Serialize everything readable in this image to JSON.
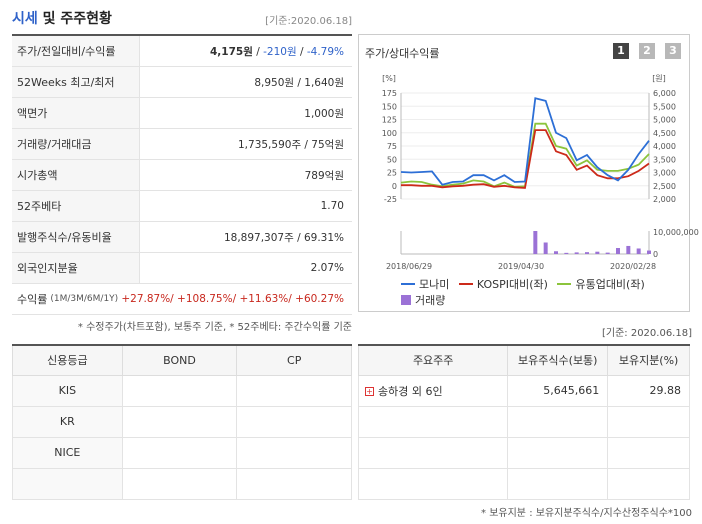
{
  "header": {
    "title_part1": "시세",
    "title_part2": " 및 주주현황",
    "ref": "[기준:2020.06.18]"
  },
  "summary": {
    "price_label": "주가/전일대비/수익률",
    "price": "4,175원",
    "change": "-210원",
    "change_pct": "-4.79%",
    "w52_label": "52Weeks 최고/최저",
    "w52_value": "8,950원 / 1,640원",
    "par_label": "액면가",
    "par_value": "1,000원",
    "volume_label": "거래량/거래대금",
    "volume_value": "1,735,590주 / 75억원",
    "mcap_label": "시가총액",
    "mcap_value": "789억원",
    "beta_label": "52주베타",
    "beta_value": "1.70",
    "shares_label": "발행주식수/유동비율",
    "shares_value": "18,897,307주 / 69.31%",
    "foreign_label": "외국인지분율",
    "foreign_value": "2.07%",
    "return_label": "수익률",
    "return_sub": "(1M/3M/6M/1Y)",
    "return_value": "+27.87%/ +108.75%/ +11.63%/ +60.27%"
  },
  "notes": {
    "note1": "* 수정주가(차트포함), 보통주 기준, * 52주베타: 주간수익률 기준",
    "ref2": "[기준: 2020.06.18]",
    "note2": "* 보유지분 : 보유지분주식수/지수산정주식수*100"
  },
  "chart_panel": {
    "title": "주가/상대수익률",
    "buttons": [
      "1",
      "2",
      "3"
    ]
  },
  "legend": {
    "s1": "모나미",
    "s2": "KOSPI대비(좌)",
    "s3": "유통업대비(좌)",
    "s4": "거래량"
  },
  "colors": {
    "s1": "#2d6fd6",
    "s2": "#cc2a1a",
    "s3": "#8cc43c",
    "vol": "#9b72d6"
  },
  "chart_data": {
    "type": "line",
    "left_unit": "[%]",
    "right_unit": "[원]",
    "left_ticks": [
      "175",
      "150",
      "125",
      "100",
      "75",
      "50",
      "25",
      "0",
      "-25"
    ],
    "right_ticks": [
      "6,000",
      "5,500",
      "5,000",
      "4,500",
      "4,000",
      "3,500",
      "3,000",
      "2,500",
      "2,000"
    ],
    "vol_ticks": [
      "10,000,000",
      "0"
    ],
    "x_labels": [
      "2018/06/29",
      "2019/04/30",
      "2020/02/28"
    ],
    "ylim": [
      -25,
      175
    ],
    "vol_max": 10000000,
    "series": [
      {
        "name": "모나미",
        "values": [
          26,
          25,
          26,
          27,
          2,
          7,
          8,
          20,
          20,
          10,
          20,
          7,
          8,
          165,
          160,
          100,
          90,
          48,
          58,
          35,
          20,
          10,
          30,
          60,
          85
        ]
      },
      {
        "name": "KOSPI대비(좌)",
        "values": [
          1,
          1,
          0,
          0,
          -3,
          -1,
          0,
          2,
          3,
          -2,
          0,
          -3,
          -4,
          105,
          105,
          65,
          58,
          30,
          38,
          20,
          14,
          14,
          18,
          28,
          42
        ]
      },
      {
        "name": "유통업대비(좌)",
        "values": [
          6,
          8,
          7,
          2,
          -1,
          2,
          4,
          10,
          8,
          -1,
          6,
          -2,
          -1,
          117,
          117,
          75,
          70,
          38,
          48,
          30,
          28,
          28,
          32,
          40,
          60
        ]
      }
    ],
    "volume": [
      0,
      0,
      0,
      0,
      0,
      0,
      0,
      0,
      0,
      0,
      0,
      0,
      0,
      10000000,
      5000000,
      1200000,
      500000,
      700000,
      800000,
      1000000,
      600000,
      2600000,
      3500000,
      2400000,
      1500000
    ]
  },
  "credit": {
    "headers": [
      "신용등급",
      "BOND",
      "CP"
    ],
    "rows": [
      {
        "agency": "KIS",
        "bond": "",
        "cp": ""
      },
      {
        "agency": "KR",
        "bond": "",
        "cp": ""
      },
      {
        "agency": "NICE",
        "bond": "",
        "cp": ""
      },
      {
        "agency": "",
        "bond": "",
        "cp": ""
      }
    ]
  },
  "holders": {
    "headers": [
      "주요주주",
      "보유주식수(보통)",
      "보유지분(%)"
    ],
    "rows": [
      {
        "name": "송하경 외 6인",
        "shares": "5,645,661",
        "pct": "29.88"
      },
      {
        "name": "",
        "shares": "",
        "pct": ""
      },
      {
        "name": "",
        "shares": "",
        "pct": ""
      },
      {
        "name": "",
        "shares": "",
        "pct": ""
      }
    ]
  }
}
